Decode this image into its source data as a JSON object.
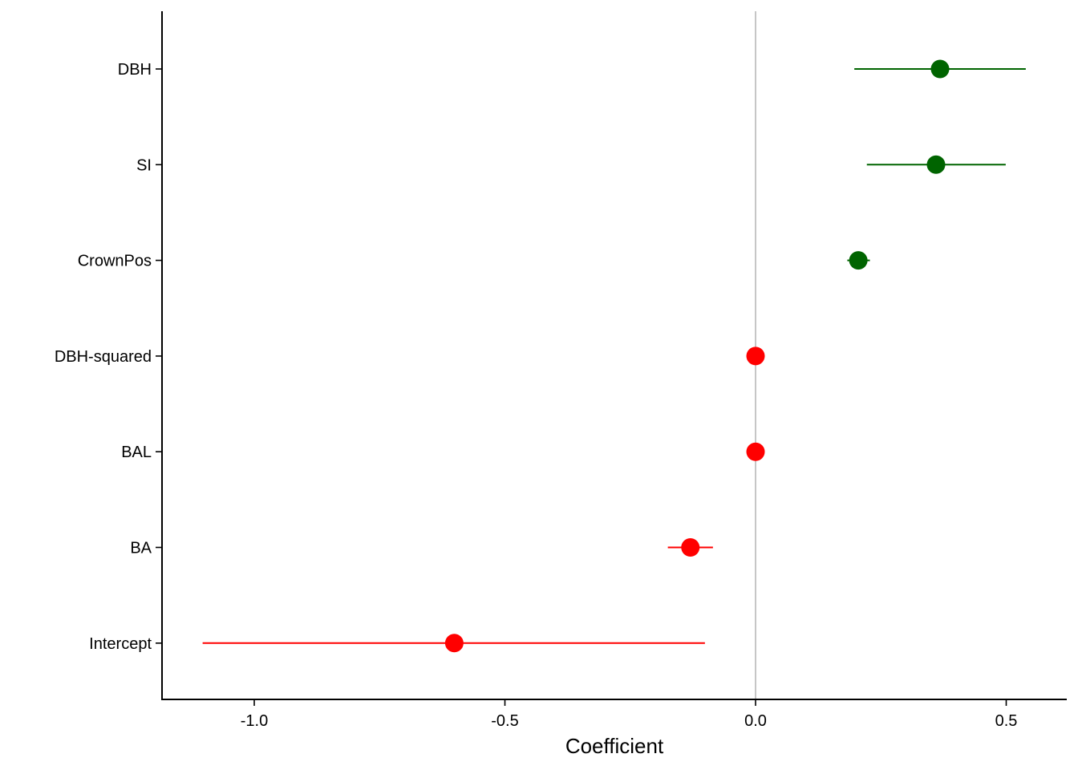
{
  "chart_data": {
    "type": "scatter",
    "subtype": "coefficient-plot-with-error-bars",
    "title": "",
    "xlabel": "Coefficient",
    "ylabel": "",
    "xlim": [
      -1.2,
      0.6
    ],
    "x_ticks": [
      -1.0,
      -0.5,
      0.0,
      0.5
    ],
    "x_tick_labels": [
      "-1.0",
      "-0.5",
      "0.0",
      "0.5"
    ],
    "reference_line": {
      "x": 0.0,
      "color": "#b8b8b8"
    },
    "grid": false,
    "legend": "none",
    "colors": {
      "positive": "#006400",
      "negative": "#ff0000",
      "axis": "#000000"
    },
    "categories": [
      "DBH",
      "SI",
      "CrownPos",
      "DBH-squared",
      "BAL",
      "BA",
      "Intercept"
    ],
    "points": [
      {
        "label": "DBH",
        "estimate": 0.368,
        "lower": 0.197,
        "upper": 0.539,
        "sign": "positive"
      },
      {
        "label": "SI",
        "estimate": 0.36,
        "lower": 0.222,
        "upper": 0.499,
        "sign": "positive"
      },
      {
        "label": "CrownPos",
        "estimate": 0.205,
        "lower": 0.183,
        "upper": 0.228,
        "sign": "positive"
      },
      {
        "label": "DBH-squared",
        "estimate": 0.0,
        "lower": -0.002,
        "upper": 0.002,
        "sign": "negative"
      },
      {
        "label": "BAL",
        "estimate": 0.0,
        "lower": -0.002,
        "upper": 0.002,
        "sign": "negative"
      },
      {
        "label": "BA",
        "estimate": -0.13,
        "lower": -0.175,
        "upper": -0.085,
        "sign": "negative"
      },
      {
        "label": "Intercept",
        "estimate": -0.601,
        "lower": -1.103,
        "upper": -0.101,
        "sign": "negative"
      }
    ]
  }
}
